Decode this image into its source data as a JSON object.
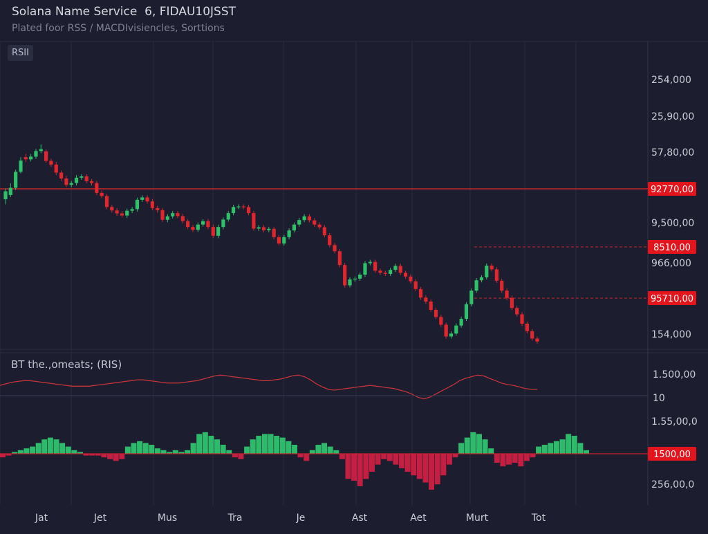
{
  "header": {
    "title": "Solana Name Service  6, FIDAU10JSST",
    "subtitle": "Plated foor RSS / MACDIvisiencles, Sorttions",
    "badge": "RSII"
  },
  "colors": {
    "background": "#1c1d2e",
    "grid": "#2a2c3e",
    "bull": "#2fc06a",
    "bear": "#e0262e",
    "level_line": "#c5262d",
    "rsi_line": "#c5343c",
    "hist_positive": "#2fb96b",
    "hist_negative": "#c21f43",
    "price_tag": "#e3151c"
  },
  "chart_data": [
    {
      "type": "candlestick",
      "title": "Solana Name Service  6, FIDAU10JSST",
      "panel_label": "RSII",
      "y_axis_labels": [
        "254,000",
        "25,90,00",
        "57,80,00",
        "9,500,00",
        "966,000",
        "154,000"
      ],
      "price_tags": [
        "92770,00",
        "8510,00",
        "95710,00"
      ],
      "horizontal_levels": [
        {
          "price_tag": "92770,00",
          "style": "solid"
        },
        {
          "price_tag": "8510,00",
          "style": "dashed"
        },
        {
          "price_tag": "95710,00",
          "style": "dashed"
        }
      ],
      "candles": [
        [
          55.8,
          58.8,
          53.9,
          59.8
        ],
        [
          57.4,
          60.1,
          56.6,
          61.8
        ],
        [
          60.1,
          66.1,
          59.3,
          66.9
        ],
        [
          66.1,
          70.3,
          65.5,
          71.6
        ],
        [
          71.6,
          70.8,
          69.8,
          72.8
        ],
        [
          70.8,
          71.8,
          70.0,
          72.8
        ],
        [
          71.8,
          73.9,
          71.0,
          74.7
        ],
        [
          73.9,
          74.6,
          73.1,
          76.4
        ],
        [
          73.8,
          70.2,
          69.5,
          74.5
        ],
        [
          70.2,
          68.8,
          68.0,
          71.0
        ],
        [
          68.8,
          65.8,
          64.9,
          69.8
        ],
        [
          65.8,
          63.6,
          62.7,
          66.6
        ],
        [
          63.6,
          61.2,
          60.4,
          64.6
        ],
        [
          61.2,
          61.9,
          60.3,
          62.7
        ],
        [
          61.9,
          63.9,
          61.0,
          64.9
        ],
        [
          63.9,
          64.4,
          63.1,
          65.2
        ],
        [
          64.4,
          62.6,
          61.8,
          65.2
        ],
        [
          62.6,
          61.9,
          61.0,
          63.4
        ],
        [
          61.9,
          58.2,
          57.4,
          62.7
        ],
        [
          58.2,
          57.0,
          56.2,
          59.1
        ],
        [
          57.0,
          52.9,
          52.1,
          57.8
        ],
        [
          52.9,
          51.6,
          50.8,
          53.7
        ],
        [
          51.6,
          50.5,
          49.6,
          52.5
        ],
        [
          50.5,
          49.7,
          48.9,
          51.4
        ],
        [
          49.7,
          51.5,
          48.8,
          52.3
        ],
        [
          51.5,
          52.1,
          50.6,
          52.9
        ],
        [
          52.1,
          55.6,
          51.2,
          56.4
        ],
        [
          55.6,
          56.5,
          54.8,
          57.3
        ],
        [
          56.5,
          55.0,
          54.2,
          57.3
        ],
        [
          55.0,
          52.5,
          51.7,
          55.9
        ],
        [
          52.5,
          51.7,
          50.8,
          53.3
        ],
        [
          51.7,
          48.1,
          47.3,
          52.5
        ],
        [
          48.1,
          49.4,
          47.2,
          50.2
        ],
        [
          49.4,
          50.6,
          48.6,
          51.4
        ],
        [
          50.6,
          49.5,
          48.7,
          51.4
        ],
        [
          49.5,
          47.6,
          46.8,
          50.3
        ],
        [
          47.6,
          45.4,
          44.6,
          48.4
        ],
        [
          45.4,
          44.3,
          43.5,
          46.2
        ],
        [
          44.3,
          46.3,
          43.5,
          47.1
        ],
        [
          46.3,
          47.6,
          45.5,
          48.4
        ],
        [
          47.6,
          45.4,
          44.6,
          48.4
        ],
        [
          45.4,
          42.1,
          41.3,
          46.3
        ],
        [
          42.1,
          45.4,
          41.2,
          46.3
        ],
        [
          45.4,
          48.2,
          44.5,
          49.0
        ],
        [
          48.2,
          50.6,
          47.4,
          51.4
        ],
        [
          50.6,
          52.9,
          49.8,
          53.7
        ],
        [
          52.9,
          53.1,
          52.1,
          53.9
        ],
        [
          53.1,
          52.9,
          52.1,
          53.9
        ],
        [
          52.9,
          50.6,
          49.8,
          53.7
        ],
        [
          50.6,
          44.8,
          44.0,
          51.4
        ],
        [
          44.8,
          45.3,
          43.9,
          46.1
        ],
        [
          45.3,
          44.2,
          43.4,
          46.1
        ],
        [
          44.2,
          44.7,
          43.4,
          45.5
        ],
        [
          44.7,
          41.6,
          40.8,
          45.5
        ],
        [
          41.6,
          39.2,
          38.4,
          42.4
        ],
        [
          39.2,
          41.6,
          38.4,
          42.4
        ],
        [
          41.6,
          44.1,
          40.8,
          44.9
        ],
        [
          44.1,
          46.3,
          43.3,
          47.1
        ],
        [
          46.3,
          48.0,
          45.5,
          48.8
        ],
        [
          48.0,
          49.4,
          47.2,
          50.2
        ],
        [
          49.4,
          47.9,
          47.1,
          50.2
        ],
        [
          47.9,
          46.3,
          45.5,
          48.7
        ],
        [
          46.3,
          45.3,
          44.5,
          47.1
        ],
        [
          45.3,
          42.3,
          41.5,
          46.1
        ],
        [
          42.3,
          38.6,
          37.8,
          43.1
        ],
        [
          38.6,
          36.3,
          35.5,
          39.4
        ],
        [
          36.3,
          31.1,
          30.3,
          37.1
        ],
        [
          31.1,
          23.5,
          22.7,
          31.9
        ],
        [
          23.5,
          25.7,
          22.7,
          26.5
        ],
        [
          25.7,
          26.0,
          24.9,
          26.8
        ],
        [
          26.0,
          27.5,
          25.2,
          28.3
        ],
        [
          27.5,
          31.8,
          26.7,
          32.6
        ],
        [
          31.8,
          32.3,
          31.0,
          33.1
        ],
        [
          32.3,
          29.0,
          28.2,
          33.1
        ],
        [
          29.0,
          28.2,
          27.4,
          29.8
        ],
        [
          28.2,
          27.8,
          27.0,
          29.0
        ],
        [
          27.8,
          29.3,
          27.0,
          30.1
        ],
        [
          29.3,
          30.8,
          28.5,
          31.6
        ],
        [
          30.8,
          28.2,
          27.4,
          31.6
        ],
        [
          28.2,
          26.8,
          26.0,
          29.0
        ],
        [
          26.8,
          25.0,
          24.2,
          27.6
        ],
        [
          25.0,
          22.1,
          21.3,
          25.8
        ],
        [
          22.1,
          18.9,
          18.1,
          22.9
        ],
        [
          18.9,
          17.4,
          16.6,
          19.7
        ],
        [
          17.4,
          14.3,
          13.5,
          18.2
        ],
        [
          14.3,
          11.6,
          10.8,
          15.1
        ],
        [
          11.6,
          8.7,
          7.9,
          12.4
        ],
        [
          8.7,
          4.3,
          3.5,
          9.5
        ],
        [
          4.3,
          5.4,
          3.5,
          6.2
        ],
        [
          5.4,
          8.4,
          4.6,
          9.2
        ],
        [
          8.4,
          10.9,
          7.6,
          11.7
        ],
        [
          10.9,
          16.4,
          10.1,
          17.2
        ],
        [
          16.4,
          21.5,
          15.6,
          22.3
        ],
        [
          21.5,
          25.4,
          20.7,
          26.2
        ],
        [
          25.4,
          26.5,
          24.6,
          27.3
        ],
        [
          26.5,
          30.9,
          25.7,
          31.7
        ],
        [
          30.9,
          29.5,
          28.7,
          31.7
        ],
        [
          29.5,
          25.2,
          24.4,
          30.3
        ],
        [
          25.2,
          21.5,
          20.7,
          26.0
        ],
        [
          21.5,
          18.8,
          18.0,
          22.3
        ],
        [
          18.8,
          15.0,
          14.2,
          19.6
        ],
        [
          15.0,
          12.6,
          11.8,
          15.8
        ],
        [
          12.6,
          9.1,
          8.3,
          13.4
        ],
        [
          9.1,
          6.3,
          5.5,
          9.9
        ],
        [
          6.3,
          3.5,
          2.7,
          7.1
        ],
        [
          3.5,
          2.4,
          1.6,
          4.3
        ]
      ]
    },
    {
      "type": "line",
      "title": "BT the.,omeats; (RIS)",
      "y_axis_labels": [
        "1.500,00",
        "10"
      ],
      "values": [
        55,
        57,
        59,
        60,
        61,
        61,
        60,
        59,
        58,
        57,
        56,
        55,
        54,
        54,
        54,
        54,
        55,
        56,
        57,
        58,
        59,
        60,
        61,
        62,
        62,
        61,
        60,
        59,
        58,
        58,
        58,
        59,
        60,
        61,
        63,
        65,
        67,
        68,
        67,
        66,
        65,
        64,
        63,
        62,
        61,
        61,
        62,
        63,
        65,
        67,
        68,
        66,
        62,
        57,
        53,
        50,
        49,
        50,
        51,
        52,
        53,
        54,
        55,
        54,
        53,
        52,
        51,
        49,
        47,
        44,
        40,
        38,
        40,
        44,
        48,
        52,
        56,
        61,
        64,
        66,
        68,
        67,
        64,
        61,
        58,
        56,
        55,
        53,
        51,
        50,
        50
      ]
    },
    {
      "type": "bar",
      "title": "",
      "y_axis_labels": [
        "1.55,00,0",
        "256,00,0"
      ],
      "price_tag": "1500,00",
      "x_tick_labels": [
        "Jat",
        "Jet",
        "Mus",
        "Tra",
        "Je",
        "Ast",
        "Aet",
        "Murt",
        "Tot"
      ],
      "values": [
        -2,
        -1,
        1,
        2,
        3,
        4,
        6,
        8,
        9,
        8,
        6,
        4,
        2,
        1,
        -1,
        -1,
        -1,
        -2,
        -3,
        -4,
        -3,
        4,
        6,
        7,
        6,
        5,
        3,
        2,
        1,
        2,
        1,
        2,
        6,
        11,
        12,
        10,
        8,
        5,
        2,
        -2,
        -3,
        4,
        8,
        10,
        11,
        11,
        10,
        9,
        7,
        5,
        -2,
        -4,
        2,
        5,
        6,
        4,
        2,
        -3,
        -14,
        -15,
        -18,
        -14,
        -10,
        -6,
        -3,
        -4,
        -6,
        -8,
        -10,
        -12,
        -14,
        -16,
        -20,
        -17,
        -12,
        -6,
        -2,
        6,
        9,
        12,
        11,
        8,
        3,
        -5,
        -7,
        -6,
        -5,
        -7,
        -4,
        -2,
        4,
        5,
        6,
        7,
        8,
        11,
        10,
        6,
        2
      ]
    }
  ]
}
